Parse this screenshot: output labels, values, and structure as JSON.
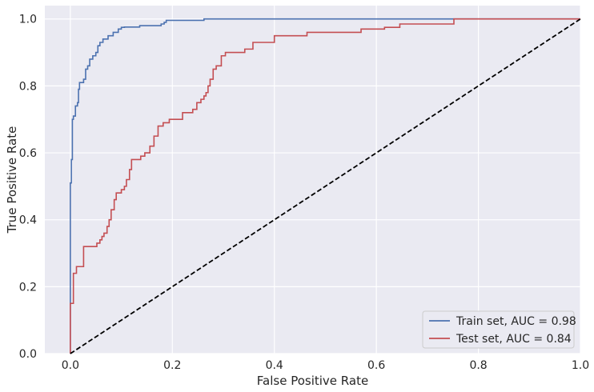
{
  "chart_data": {
    "type": "line",
    "title": "",
    "xlabel": "False Positive Rate",
    "ylabel": "True Positive Rate",
    "xlim": [
      -0.05,
      1.0
    ],
    "ylim": [
      0.0,
      1.04
    ],
    "xticks": [
      0.0,
      0.2,
      0.4,
      0.6,
      0.8,
      1.0
    ],
    "xtick_labels": [
      "0.0",
      "0.2",
      "0.4",
      "0.6",
      "0.8",
      "1.0"
    ],
    "yticks": [
      0.0,
      0.2,
      0.4,
      0.6,
      0.8,
      1.0
    ],
    "ytick_labels": [
      "0.0",
      "0.2",
      "0.4",
      "0.6",
      "0.8",
      "1.0"
    ],
    "grid": true,
    "legend_position": "lower-right",
    "background": "#eaeaf2",
    "series": [
      {
        "name": "Train set, AUC = 0.98",
        "color": "#4c72b0",
        "style": "step",
        "x": [
          0.0,
          0.0,
          0.002,
          0.002,
          0.004,
          0.004,
          0.006,
          0.006,
          0.01,
          0.01,
          0.014,
          0.014,
          0.016,
          0.016,
          0.018,
          0.018,
          0.022,
          0.022,
          0.026,
          0.026,
          0.03,
          0.03,
          0.034,
          0.034,
          0.038,
          0.038,
          0.044,
          0.044,
          0.05,
          0.05,
          0.054,
          0.054,
          0.058,
          0.058,
          0.064,
          0.064,
          0.074,
          0.074,
          0.084,
          0.084,
          0.094,
          0.094,
          0.1,
          0.1,
          0.106,
          0.106,
          0.136,
          0.136,
          0.178,
          0.178,
          0.184,
          0.184,
          0.188,
          0.188,
          0.19,
          0.19,
          0.262,
          0.262,
          0.756,
          0.756,
          1.0
        ],
        "y": [
          0.0,
          0.51,
          0.51,
          0.58,
          0.58,
          0.7,
          0.7,
          0.71,
          0.71,
          0.74,
          0.74,
          0.75,
          0.75,
          0.79,
          0.79,
          0.81,
          0.81,
          0.81,
          0.81,
          0.82,
          0.82,
          0.85,
          0.85,
          0.86,
          0.86,
          0.88,
          0.88,
          0.89,
          0.89,
          0.9,
          0.9,
          0.92,
          0.92,
          0.93,
          0.93,
          0.94,
          0.94,
          0.95,
          0.95,
          0.96,
          0.96,
          0.97,
          0.97,
          0.975,
          0.975,
          0.976,
          0.976,
          0.98,
          0.98,
          0.985,
          0.985,
          0.99,
          0.99,
          0.996,
          0.996,
          0.996,
          0.996,
          1.0,
          1.0,
          1.0,
          1.0
        ]
      },
      {
        "name": "Test set, AUC = 0.84",
        "color": "#c44e52",
        "style": "step",
        "x": [
          0.0,
          0.0,
          0.006,
          0.006,
          0.012,
          0.012,
          0.026,
          0.026,
          0.052,
          0.052,
          0.058,
          0.058,
          0.062,
          0.062,
          0.066,
          0.066,
          0.072,
          0.072,
          0.076,
          0.076,
          0.08,
          0.08,
          0.086,
          0.086,
          0.09,
          0.09,
          0.1,
          0.1,
          0.106,
          0.106,
          0.11,
          0.11,
          0.116,
          0.116,
          0.12,
          0.12,
          0.138,
          0.138,
          0.146,
          0.146,
          0.156,
          0.156,
          0.164,
          0.164,
          0.172,
          0.172,
          0.182,
          0.182,
          0.194,
          0.194,
          0.22,
          0.22,
          0.24,
          0.24,
          0.248,
          0.248,
          0.256,
          0.256,
          0.262,
          0.262,
          0.266,
          0.266,
          0.27,
          0.27,
          0.274,
          0.274,
          0.28,
          0.28,
          0.286,
          0.286,
          0.296,
          0.296,
          0.304,
          0.304,
          0.316,
          0.316,
          0.342,
          0.342,
          0.358,
          0.358,
          0.4,
          0.4,
          0.464,
          0.464,
          0.57,
          0.57,
          0.616,
          0.616,
          0.646,
          0.646,
          0.752,
          0.752,
          1.0
        ],
        "y": [
          0.0,
          0.15,
          0.15,
          0.24,
          0.24,
          0.26,
          0.26,
          0.32,
          0.32,
          0.33,
          0.33,
          0.34,
          0.34,
          0.35,
          0.35,
          0.36,
          0.36,
          0.38,
          0.38,
          0.4,
          0.4,
          0.43,
          0.43,
          0.46,
          0.46,
          0.48,
          0.48,
          0.49,
          0.49,
          0.5,
          0.5,
          0.52,
          0.52,
          0.55,
          0.55,
          0.58,
          0.58,
          0.59,
          0.59,
          0.6,
          0.6,
          0.62,
          0.62,
          0.65,
          0.65,
          0.68,
          0.68,
          0.69,
          0.69,
          0.7,
          0.7,
          0.72,
          0.72,
          0.73,
          0.73,
          0.75,
          0.75,
          0.76,
          0.76,
          0.77,
          0.77,
          0.78,
          0.78,
          0.8,
          0.8,
          0.82,
          0.82,
          0.85,
          0.85,
          0.86,
          0.86,
          0.89,
          0.89,
          0.9,
          0.9,
          0.9,
          0.9,
          0.91,
          0.91,
          0.93,
          0.93,
          0.95,
          0.95,
          0.96,
          0.96,
          0.97,
          0.97,
          0.975,
          0.975,
          0.985,
          0.985,
          1.0,
          1.0
        ]
      },
      {
        "name": "",
        "color": "#000000",
        "style": "dashed",
        "x": [
          0.0,
          1.0
        ],
        "y": [
          0.0,
          1.0
        ]
      }
    ]
  }
}
